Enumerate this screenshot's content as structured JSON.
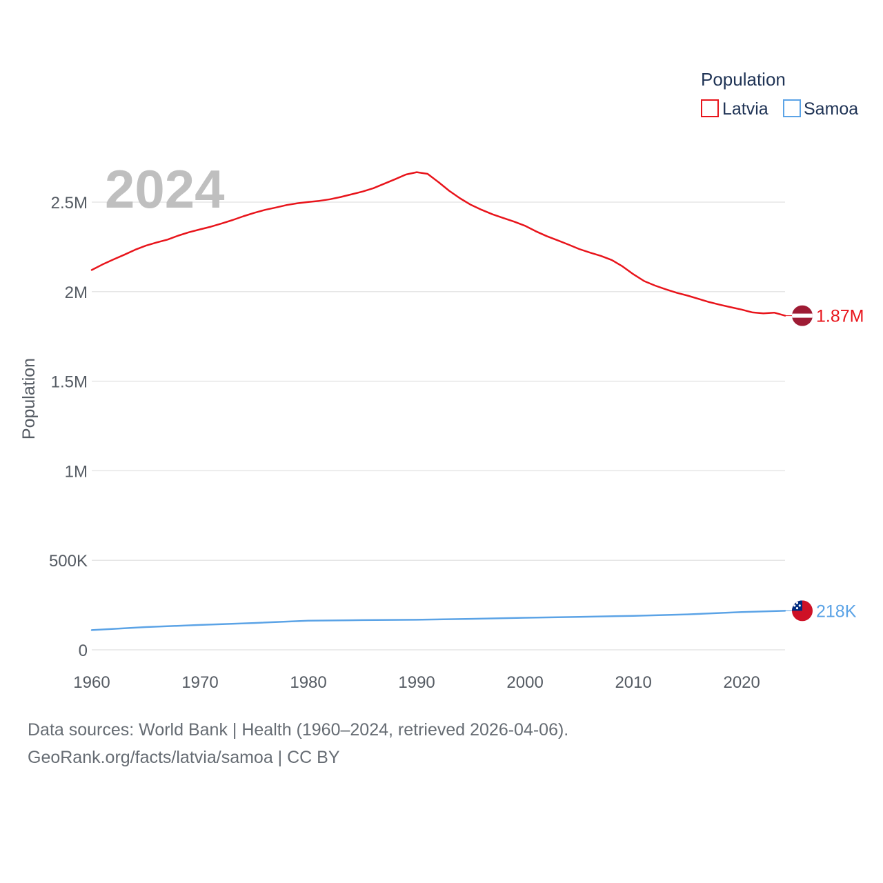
{
  "chart_data": {
    "type": "line",
    "title": "Population",
    "ylabel": "Population",
    "xlabel": "",
    "current_year_label": "2024",
    "xlim": [
      1960,
      2024
    ],
    "ylim": [
      0,
      2750000
    ],
    "x_ticks": [
      1960,
      1970,
      1980,
      1990,
      2000,
      2010,
      2020
    ],
    "x_tick_labels": [
      "1960",
      "1970",
      "1980",
      "1990",
      "2000",
      "2010",
      "2020"
    ],
    "y_ticks": [
      0,
      500000,
      1000000,
      1500000,
      2000000,
      2500000
    ],
    "y_tick_labels": [
      "0",
      "500K",
      "1M",
      "1.5M",
      "2M",
      "2.5M"
    ],
    "grid": true,
    "legend": {
      "title": "Population",
      "position": "top-right",
      "entries": [
        "Latvia",
        "Samoa"
      ]
    },
    "series": [
      {
        "name": "Latvia",
        "color": "#e8141b",
        "end_label": "1.87M",
        "flag_icon": "latvia-flag-icon",
        "x": [
          1960,
          1961,
          1962,
          1963,
          1964,
          1965,
          1966,
          1967,
          1968,
          1969,
          1970,
          1971,
          1972,
          1973,
          1974,
          1975,
          1976,
          1977,
          1978,
          1979,
          1980,
          1981,
          1982,
          1983,
          1984,
          1985,
          1986,
          1987,
          1988,
          1989,
          1990,
          1991,
          1992,
          1993,
          1994,
          1995,
          1996,
          1997,
          1998,
          1999,
          2000,
          2001,
          2002,
          2003,
          2004,
          2005,
          2006,
          2007,
          2008,
          2009,
          2010,
          2011,
          2012,
          2013,
          2014,
          2015,
          2016,
          2017,
          2018,
          2019,
          2020,
          2021,
          2022,
          2023,
          2024
        ],
        "values": [
          2121000,
          2152000,
          2180000,
          2206000,
          2234000,
          2257000,
          2275000,
          2291000,
          2313000,
          2332000,
          2348000,
          2363000,
          2381000,
          2400000,
          2421000,
          2440000,
          2457000,
          2470000,
          2484000,
          2494000,
          2501000,
          2507000,
          2516000,
          2529000,
          2544000,
          2559000,
          2578000,
          2603000,
          2628000,
          2654000,
          2667000,
          2658000,
          2612000,
          2563000,
          2521000,
          2485000,
          2457000,
          2432000,
          2411000,
          2391000,
          2368000,
          2337000,
          2310000,
          2287000,
          2263000,
          2238000,
          2218000,
          2200000,
          2177000,
          2141000,
          2097000,
          2059000,
          2034000,
          2013000,
          1994000,
          1978000,
          1960000,
          1942000,
          1927000,
          1913000,
          1900000,
          1884000,
          1879000,
          1883000,
          1866000
        ]
      },
      {
        "name": "Samoa",
        "color": "#5ba3e6",
        "end_label": "218K",
        "flag_icon": "samoa-flag-icon",
        "x": [
          1960,
          1965,
          1970,
          1975,
          1980,
          1985,
          1990,
          1995,
          2000,
          2005,
          2010,
          2015,
          2020,
          2024
        ],
        "values": [
          110000,
          127000,
          139000,
          150000,
          163000,
          166000,
          168000,
          173000,
          179000,
          184000,
          190000,
          198000,
          211000,
          218000
        ]
      }
    ]
  },
  "footer": {
    "sources": "Data sources: World Bank | Health (1960–2024, retrieved 2026-04-06).",
    "link": "GeoRank.org/facts/latvia/samoa | CC BY"
  }
}
